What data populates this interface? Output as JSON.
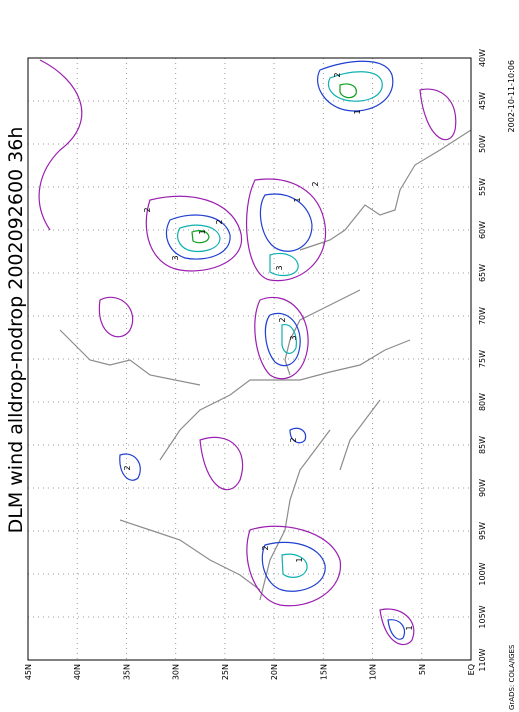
{
  "title": "DLM wind alldrop-nodrop 2002092600 36h",
  "lat_labels": [
    "45N",
    "40N",
    "35N",
    "30N",
    "25N",
    "20N",
    "15N",
    "10N",
    "5N",
    "EQ"
  ],
  "lon_labels": [
    "40W",
    "45W",
    "50W",
    "55W",
    "60W",
    "65W",
    "70W",
    "75W",
    "80W",
    "85W",
    "90W",
    "95W",
    "100W",
    "105W",
    "110W"
  ],
  "contour_labels": [
    "1",
    "2",
    "3",
    "1",
    "2",
    "3",
    "2",
    "1",
    "2",
    "3",
    "2",
    "1",
    "2",
    "2",
    "1",
    "2"
  ],
  "footer": "GrADS: COLA/IGES",
  "timestamp": "2002-10-11-10:06"
}
